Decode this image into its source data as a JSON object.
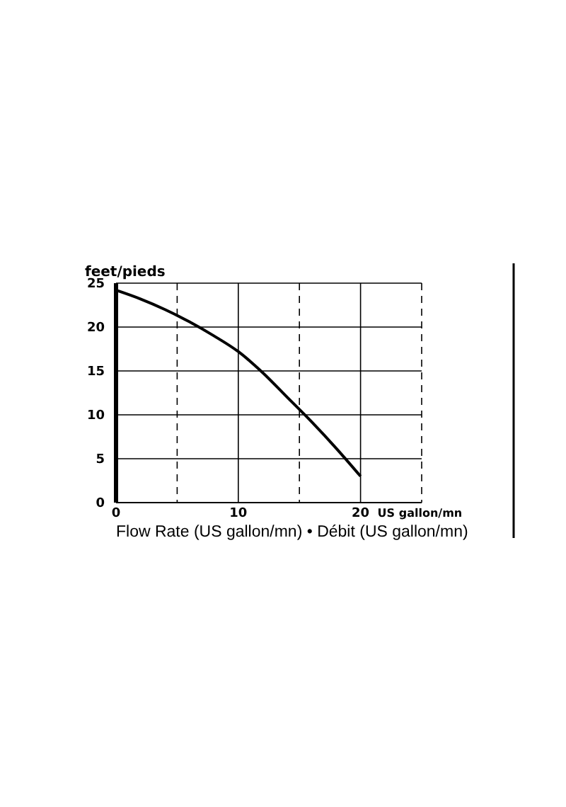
{
  "chart_data": {
    "type": "line",
    "ylabel": "feet/pieds",
    "xlabel": "Flow Rate (US gallon/mn) • Débit (US gallon/mn)",
    "annotations": [
      "US gallon/mn"
    ],
    "x": [
      0,
      2,
      4,
      6,
      8,
      10,
      12,
      14,
      16,
      18,
      20
    ],
    "series": [
      {
        "color": "#000000",
        "values": [
          24.2,
          23.2,
          22,
          20.6,
          19,
          17.2,
          14.8,
          12,
          9.2,
          6.2,
          3
        ]
      }
    ],
    "xlim": [
      0,
      25
    ],
    "xticks": [
      0,
      {
        "value": 5,
        "label": null
      },
      10,
      {
        "value": 15,
        "label": null
      },
      20,
      {
        "value": 25,
        "label": null
      }
    ],
    "ylim": [
      0,
      25
    ],
    "yticks": [
      0,
      5,
      10,
      15,
      20,
      25
    ],
    "grid": true,
    "marker": "none",
    "line_style": "solid"
  }
}
